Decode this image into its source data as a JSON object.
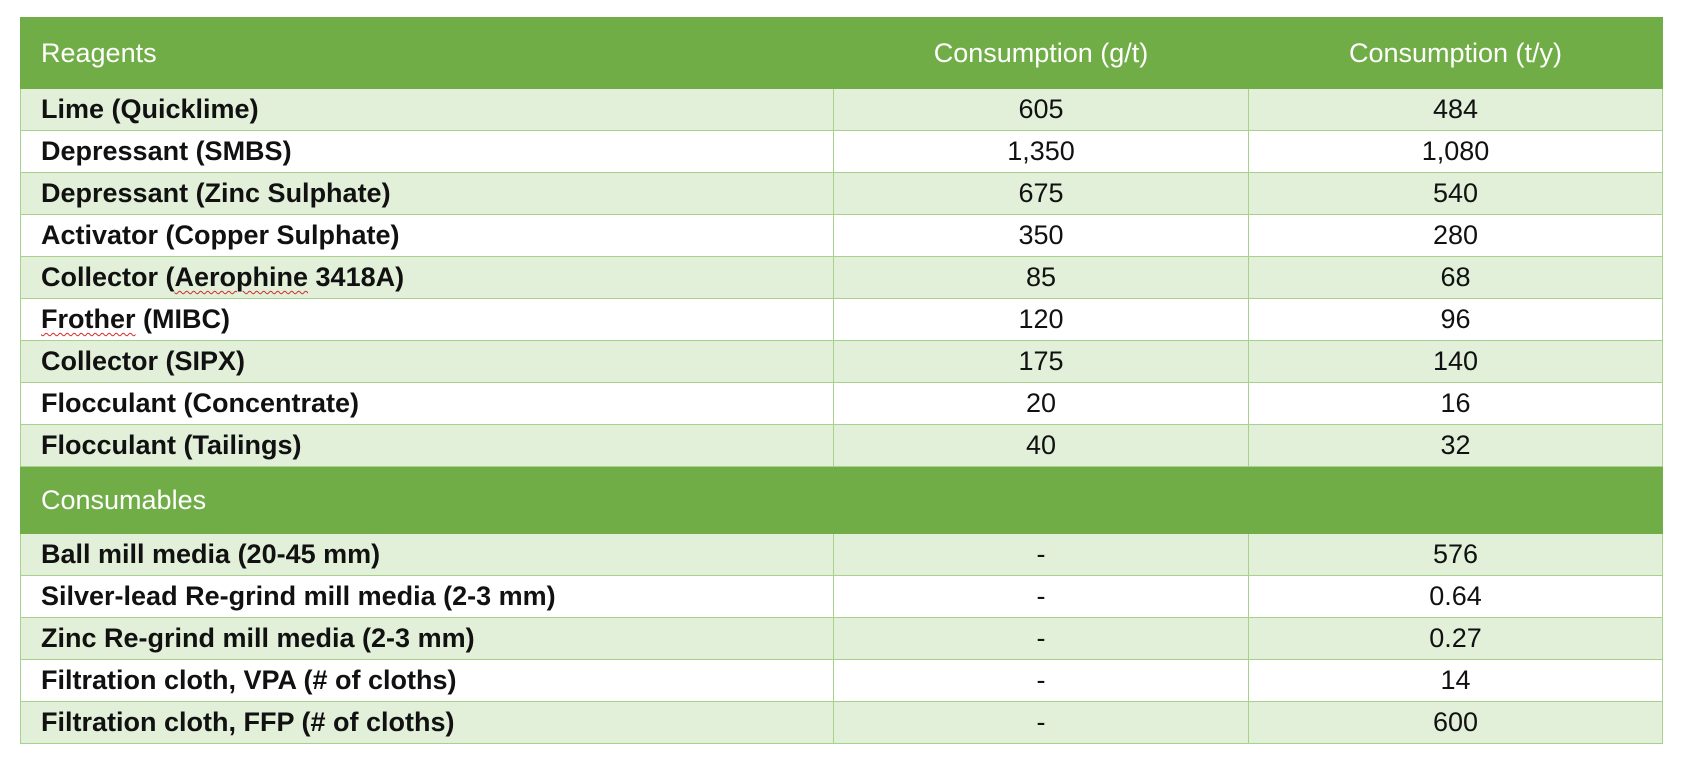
{
  "table": {
    "headers": {
      "col1": "Reagents",
      "col2": "Consumption (g/t)",
      "col3": "Consumption (t/y)"
    },
    "reagents": [
      {
        "name_pre": "Lime (Quicklime)",
        "name_flag": "",
        "name_post": "",
        "gt": "605",
        "ty": "484"
      },
      {
        "name_pre": "Depressant (SMBS)",
        "name_flag": "",
        "name_post": "",
        "gt": "1,350",
        "ty": "1,080"
      },
      {
        "name_pre": "Depressant (Zinc Sulphate)",
        "name_flag": "",
        "name_post": "",
        "gt": "675",
        "ty": "540"
      },
      {
        "name_pre": "Activator (Copper Sulphate)",
        "name_flag": "",
        "name_post": "",
        "gt": "350",
        "ty": "280"
      },
      {
        "name_pre": "Collector (",
        "name_flag": "Aerophine",
        "name_post": " 3418A)",
        "gt": "85",
        "ty": "68"
      },
      {
        "name_pre": "",
        "name_flag": "Frother",
        "name_post": " (MIBC)",
        "gt": "120",
        "ty": "96"
      },
      {
        "name_pre": "Collector (SIPX)",
        "name_flag": "",
        "name_post": "",
        "gt": "175",
        "ty": "140"
      },
      {
        "name_pre": "Flocculant (Concentrate)",
        "name_flag": "",
        "name_post": "",
        "gt": "20",
        "ty": "16"
      },
      {
        "name_pre": "Flocculant (Tailings)",
        "name_flag": "",
        "name_post": "",
        "gt": "40",
        "ty": "32"
      }
    ],
    "section_label": "Consumables",
    "consumables": [
      {
        "name": "Ball mill media (20-45 mm)",
        "gt": "-",
        "ty": "576"
      },
      {
        "name": "Silver-lead Re-grind mill media (2-3 mm)",
        "gt": "-",
        "ty": "0.64"
      },
      {
        "name": "Zinc Re-grind mill media (2-3 mm)",
        "gt": "-",
        "ty": "0.27"
      },
      {
        "name": "Filtration cloth, VPA (# of cloths)",
        "gt": "-",
        "ty": "14"
      },
      {
        "name": "Filtration cloth, FFP (# of cloths)",
        "gt": "-",
        "ty": "600"
      }
    ]
  },
  "colors": {
    "header_green": "#70ad47",
    "band_green": "#e2efd9",
    "grid_green": "#a9d18e",
    "spellcheck_red": "#d12a2a"
  }
}
